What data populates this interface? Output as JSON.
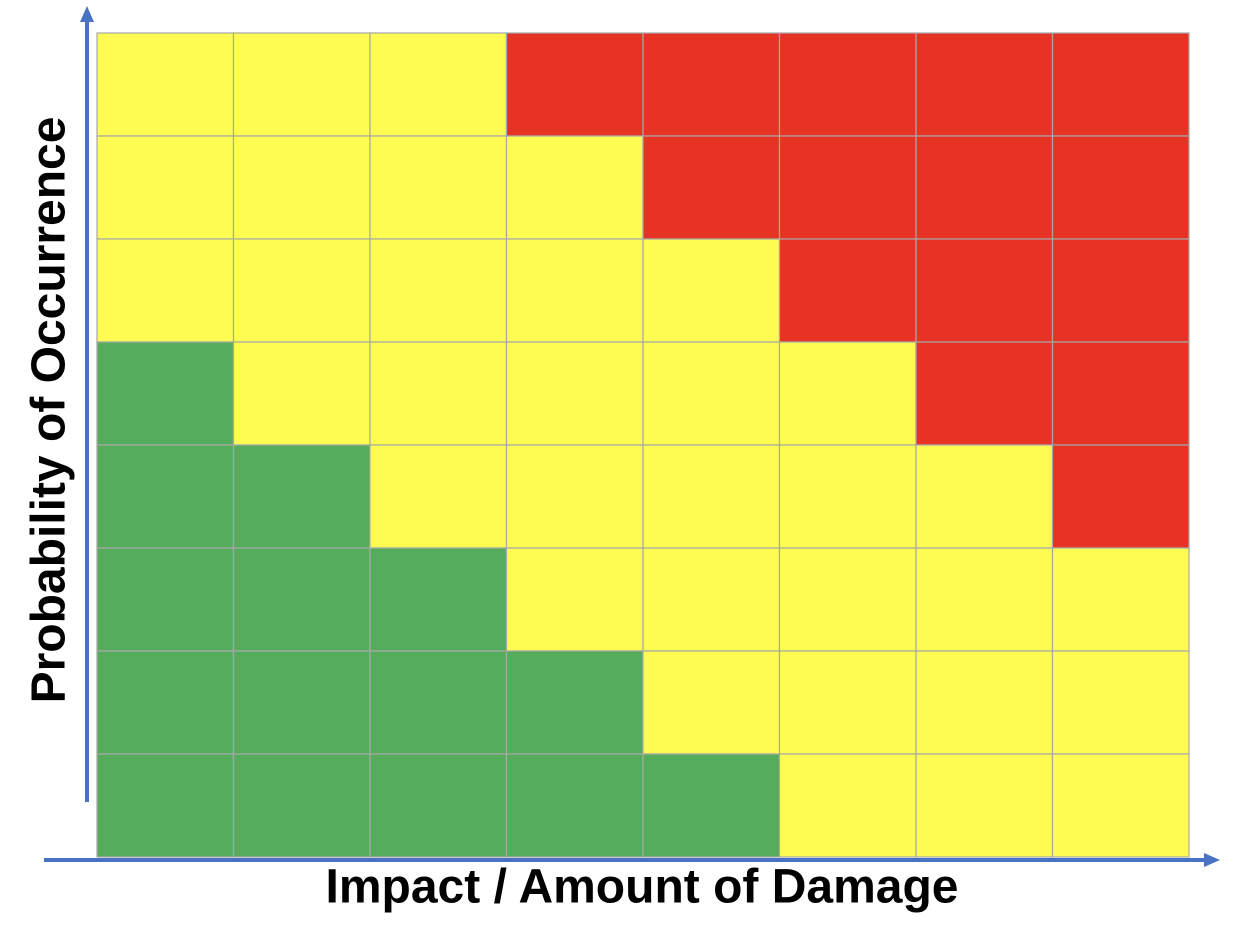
{
  "x_axis_label": "Impact / Amount of Damage",
  "y_axis_label": "Probability of Occurrence",
  "grid": {
    "rows": [
      [
        "#fefb52",
        "#fefb52",
        "#fefb52",
        "#e73323",
        "#e73323",
        "#e73323",
        "#e73323",
        "#e73323"
      ],
      [
        "#fefb52",
        "#fefb52",
        "#fefb52",
        "#fefb52",
        "#e73323",
        "#e73323",
        "#e73323",
        "#e73323"
      ],
      [
        "#fefb52",
        "#fefb52",
        "#fefb52",
        "#fefb52",
        "#fefb52",
        "#e73323",
        "#e73323",
        "#e73323"
      ],
      [
        "#55ad5c",
        "#fefb52",
        "#fefb52",
        "#fefb52",
        "#fefb52",
        "#fefb52",
        "#e73323",
        "#e73323"
      ],
      [
        "#55ad5c",
        "#55ad5c",
        "#fefb52",
        "#fefb52",
        "#fefb52",
        "#fefb52",
        "#fefb52",
        "#e73323"
      ],
      [
        "#55ad5c",
        "#55ad5c",
        "#55ad5c",
        "#fefb52",
        "#fefb52",
        "#fefb52",
        "#fefb52",
        "#fefb52"
      ],
      [
        "#55ad5c",
        "#55ad5c",
        "#55ad5c",
        "#55ad5c",
        "#fefb52",
        "#fefb52",
        "#fefb52",
        "#fefb52"
      ],
      [
        "#55ad5c",
        "#55ad5c",
        "#55ad5c",
        "#55ad5c",
        "#55ad5c",
        "#fefb52",
        "#fefb52",
        "#fefb52"
      ]
    ]
  }
}
